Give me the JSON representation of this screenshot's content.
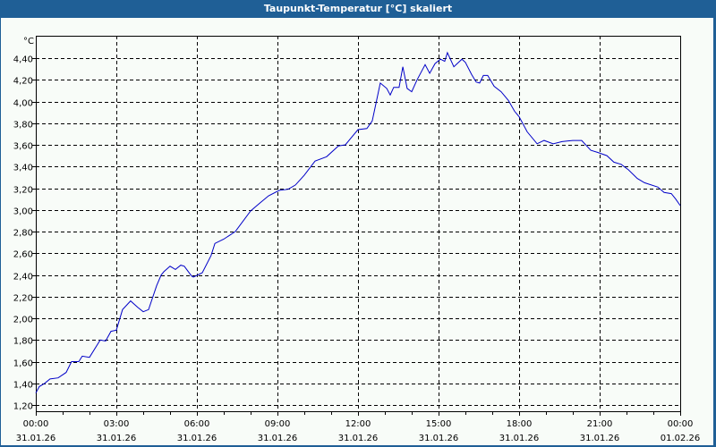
{
  "window": {
    "title": "Taupunkt-Temperatur [°C] skaliert"
  },
  "chart_data": {
    "type": "line",
    "title": "Taupunkt-Temperatur [°C] skaliert",
    "xlabel": "",
    "ylabel": "°C",
    "ylim": [
      1.2,
      4.4
    ],
    "xlim_hours": [
      0,
      24
    ],
    "grid": true,
    "grid_style": "dashed",
    "line_color": "#0000c8",
    "y_ticks": [
      "1,20",
      "1,40",
      "1,60",
      "1,80",
      "2,00",
      "2,20",
      "2,40",
      "2,60",
      "2,80",
      "3,00",
      "3,20",
      "3,40",
      "3,60",
      "3,80",
      "4,00",
      "4,20",
      "4,40"
    ],
    "x_ticks": [
      {
        "time": "00:00",
        "date": "31.01.26"
      },
      {
        "time": "03:00",
        "date": "31.01.26"
      },
      {
        "time": "06:00",
        "date": "31.01.26"
      },
      {
        "time": "09:00",
        "date": "31.01.26"
      },
      {
        "time": "12:00",
        "date": "31.01.26"
      },
      {
        "time": "15:00",
        "date": "31.01.26"
      },
      {
        "time": "18:00",
        "date": "31.01.26"
      },
      {
        "time": "21:00",
        "date": "31.01.26"
      },
      {
        "time": "00:00",
        "date": "01.02.26"
      }
    ],
    "series": [
      {
        "name": "Taupunkt-Temperatur",
        "x_hours": [
          0.0,
          0.13,
          0.33,
          0.53,
          0.83,
          1.13,
          1.33,
          1.6,
          1.73,
          2.0,
          2.4,
          2.6,
          2.8,
          3.0,
          3.23,
          3.53,
          3.8,
          4.0,
          4.2,
          4.5,
          4.67,
          4.77,
          5.0,
          5.2,
          5.4,
          5.53,
          5.8,
          5.87,
          6.2,
          6.53,
          6.67,
          7.0,
          7.43,
          8.0,
          8.33,
          8.67,
          9.07,
          9.4,
          9.67,
          10.0,
          10.4,
          10.83,
          11.27,
          11.53,
          11.73,
          12.0,
          12.33,
          12.53,
          12.83,
          13.07,
          13.2,
          13.33,
          13.53,
          13.67,
          13.83,
          14.0,
          14.2,
          14.5,
          14.67,
          14.87,
          15.07,
          15.23,
          15.33,
          15.57,
          15.87,
          16.0,
          16.23,
          16.4,
          16.53,
          16.67,
          16.83,
          17.07,
          17.33,
          17.6,
          17.83,
          18.0,
          18.3,
          18.67,
          18.93,
          19.27,
          19.6,
          20.0,
          20.33,
          20.67,
          20.93,
          21.27,
          21.53,
          21.8,
          22.07,
          22.4,
          22.67,
          23.17,
          23.4,
          23.67,
          23.83,
          24.0
        ],
        "values": [
          1.31,
          1.37,
          1.4,
          1.44,
          1.45,
          1.5,
          1.6,
          1.6,
          1.65,
          1.64,
          1.8,
          1.79,
          1.88,
          1.89,
          2.08,
          2.16,
          2.1,
          2.06,
          2.08,
          2.3,
          2.4,
          2.43,
          2.48,
          2.45,
          2.49,
          2.48,
          2.39,
          2.38,
          2.42,
          2.58,
          2.69,
          2.73,
          2.8,
          2.99,
          3.06,
          3.13,
          3.18,
          3.19,
          3.23,
          3.32,
          3.45,
          3.49,
          3.59,
          3.6,
          3.66,
          3.74,
          3.75,
          3.82,
          4.17,
          4.12,
          4.06,
          4.13,
          4.13,
          4.32,
          4.12,
          4.09,
          4.2,
          4.34,
          4.26,
          4.35,
          4.39,
          4.37,
          4.45,
          4.32,
          4.39,
          4.36,
          4.25,
          4.18,
          4.17,
          4.24,
          4.24,
          4.14,
          4.09,
          4.01,
          3.91,
          3.86,
          3.72,
          3.61,
          3.64,
          3.61,
          3.63,
          3.64,
          3.64,
          3.55,
          3.53,
          3.5,
          3.44,
          3.42,
          3.37,
          3.29,
          3.25,
          3.21,
          3.16,
          3.15,
          3.1,
          3.04
        ]
      }
    ]
  }
}
